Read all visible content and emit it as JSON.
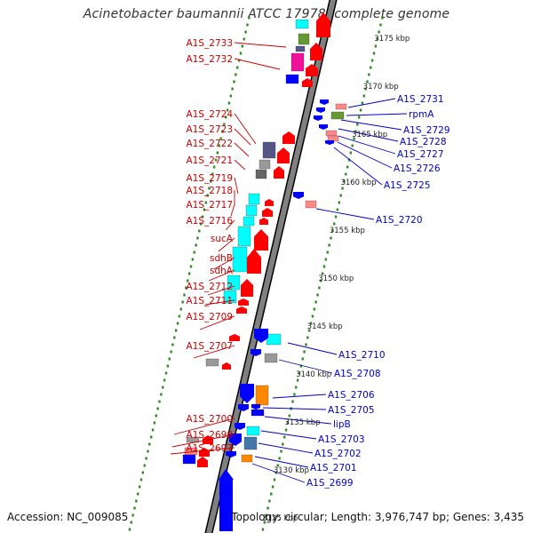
{
  "title": "Acinetobacter baumannii ATCC 17978, complete genome",
  "accession": "Accession: NC_009085",
  "topology": "Topology: circular; Length: 3,976,747 bp; Genes: 3,435",
  "colors": {
    "backbone": "#808080",
    "backbone_edge": "#000000",
    "left_label": "#cc0000",
    "right_label": "#0000cc",
    "tick_dots": "#2e8b22",
    "forward_gene": "#ff0000",
    "reverse_gene": "#0000ff",
    "cyan": "#00ffff",
    "magenta": "#ee1199",
    "olive": "#669933",
    "slate": "#555588",
    "grey": "#999999",
    "orange": "#ff8800",
    "pink": "#ff8888",
    "steelblue": "#4477aa"
  },
  "scale_ticks": [
    "3175 kbp",
    "3170 kbp",
    "3165 kbp",
    "3160 kbp",
    "3155 kbp",
    "3150 kbp",
    "3145 kbp",
    "3140 kbp",
    "3135 kbp",
    "3130 kbp",
    "3125 kbp"
  ],
  "left_labels": [
    "A1S_2733",
    "A1S_2732",
    "A1S_2724",
    "A1S_2723",
    "A1S_2722",
    "A1S_2721",
    "A1S_2719",
    "A1S_2718",
    "A1S_2717",
    "A1S_2716",
    "sucA",
    "sdhB",
    "sdhA",
    "A1S_2712",
    "A1S_2711",
    "A1S_2709",
    "A1S_2707",
    "A1S_2700",
    "A1S_2698",
    "A1S_2697"
  ],
  "right_labels": [
    "A1S_2731",
    "rpmA",
    "A1S_2729",
    "A1S_2728",
    "A1S_2727",
    "A1S_2726",
    "A1S_2725",
    "A1S_2720",
    "A1S_2710",
    "A1S_2708",
    "A1S_2706",
    "A1S_2705",
    "lipB",
    "A1S_2703",
    "A1S_2702",
    "A1S_2701",
    "A1S_2699"
  ]
}
